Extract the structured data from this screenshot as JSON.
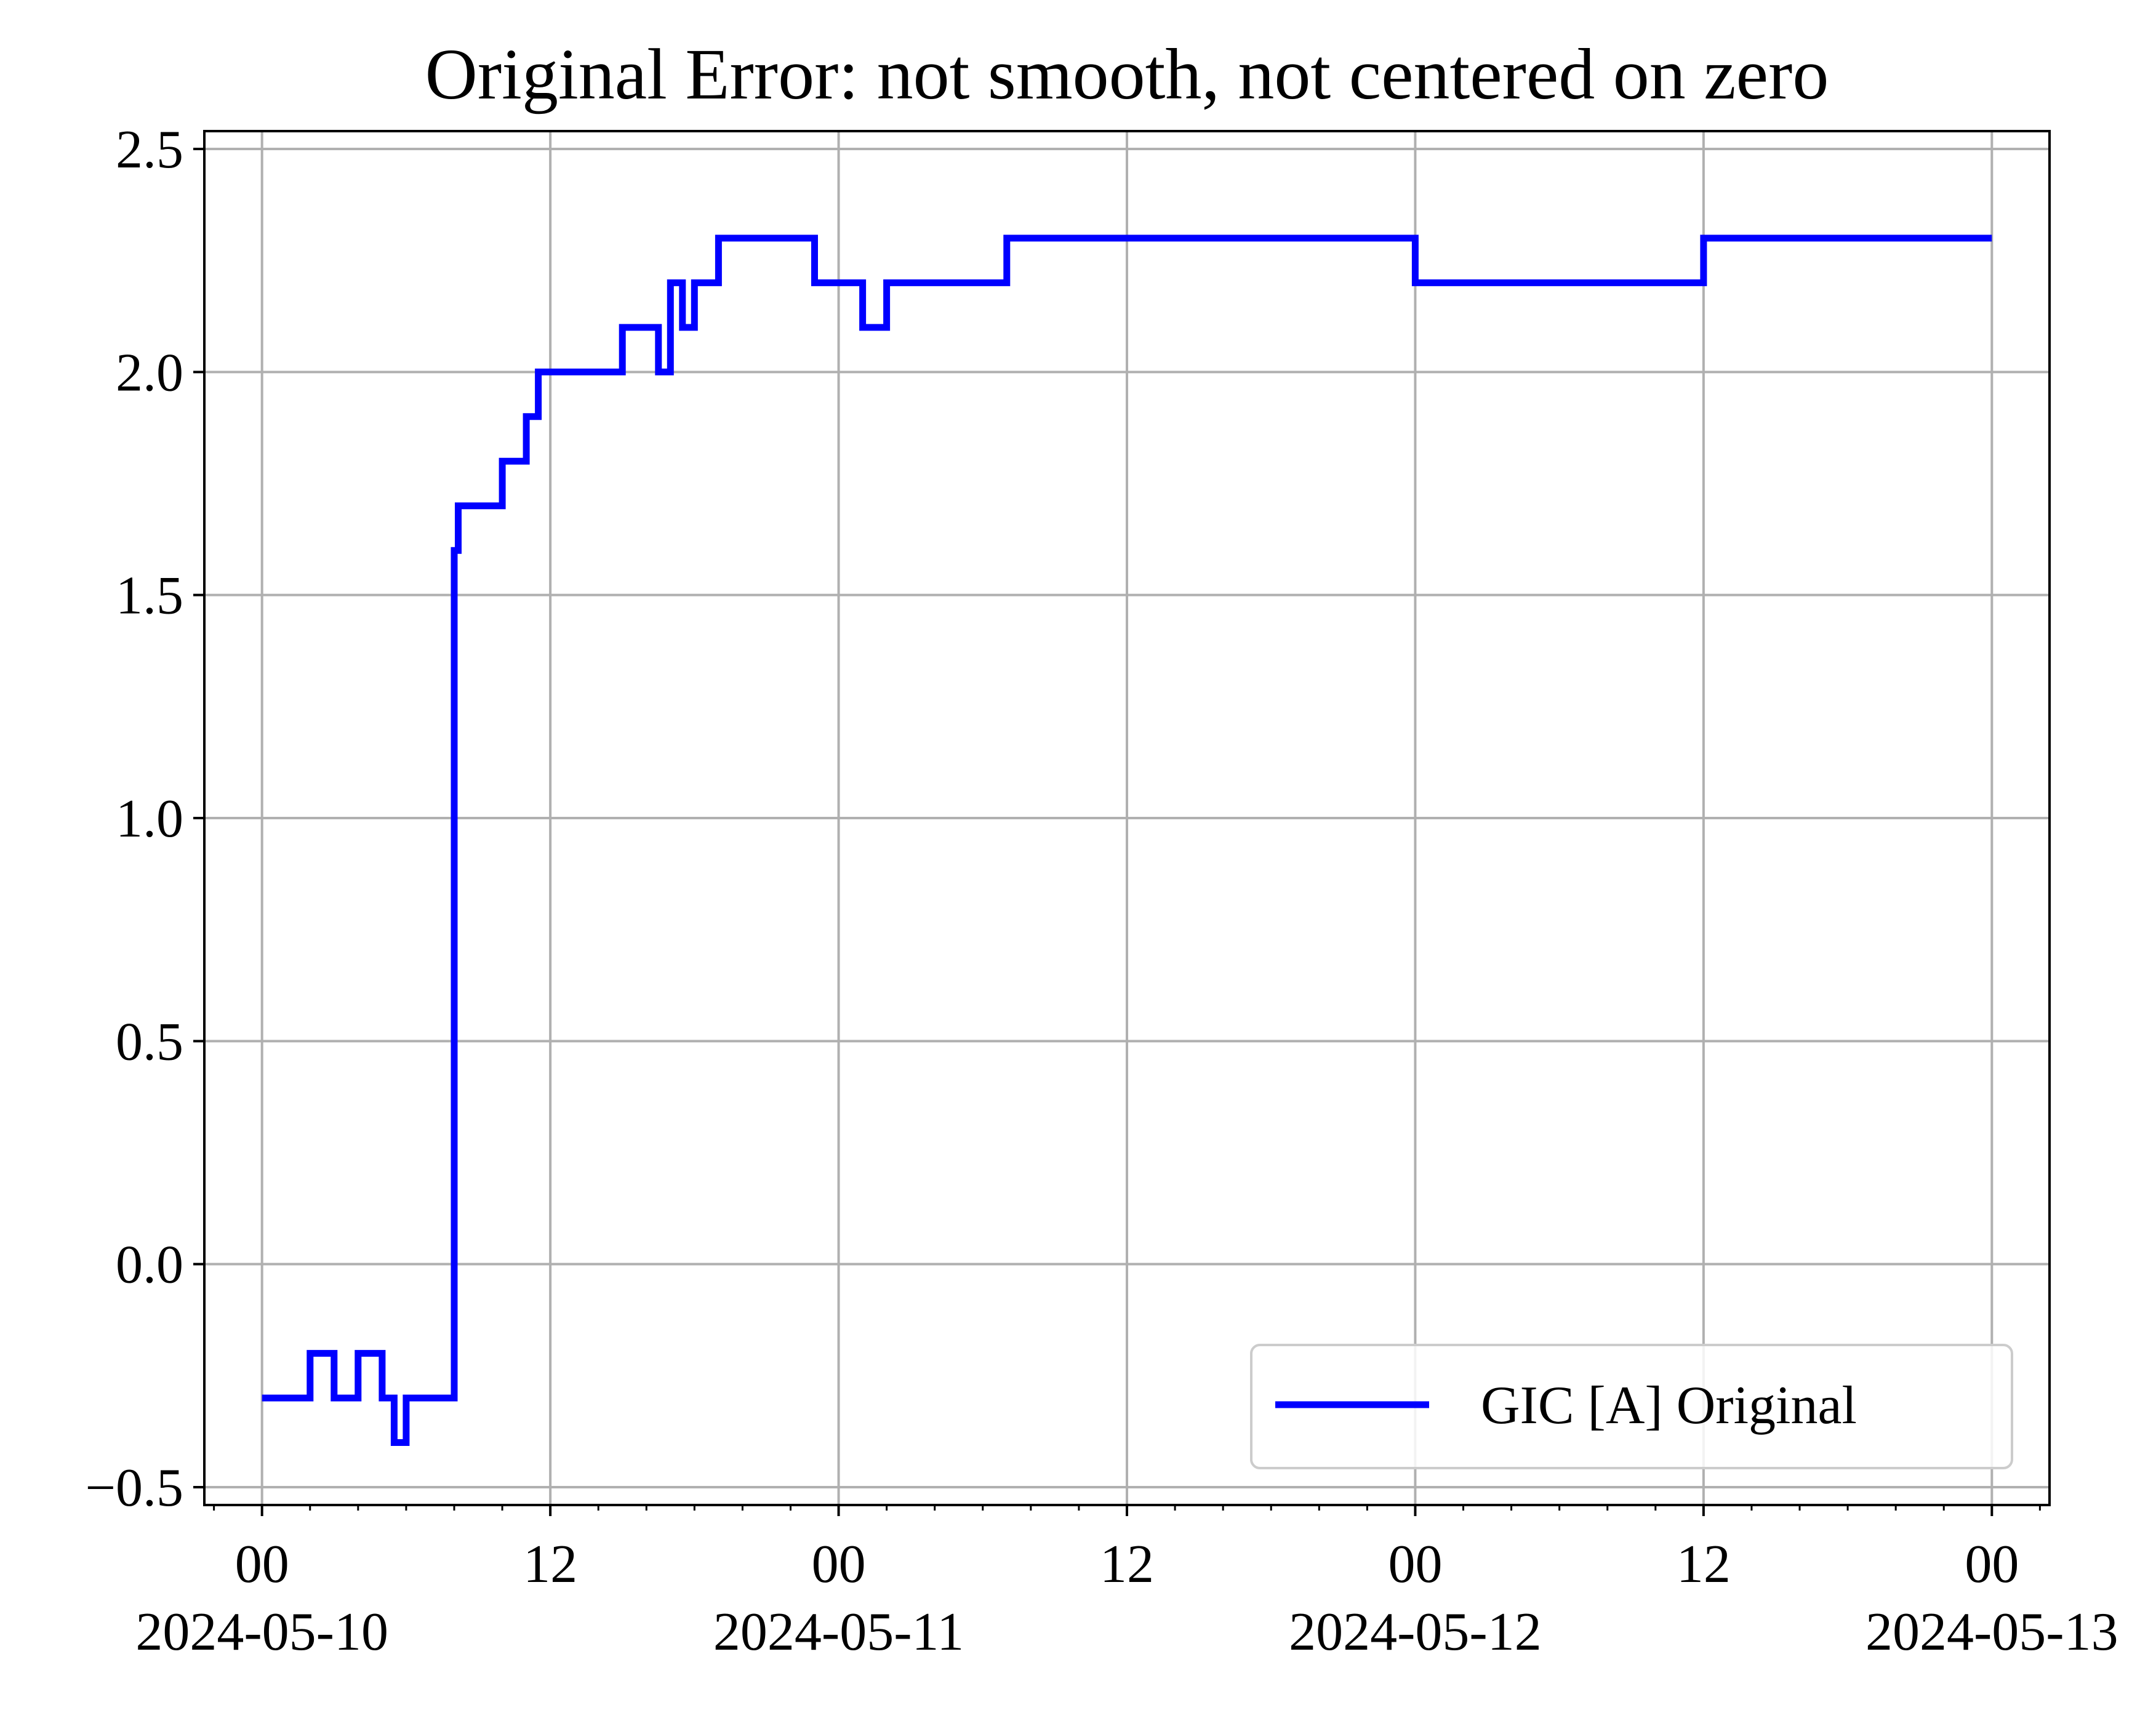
{
  "chart_data": {
    "type": "line",
    "title": "Original Error: not smooth, not centered on zero",
    "xlabel": "",
    "ylabel": "",
    "grid": true,
    "legend_position": "lower-right",
    "xlim": [
      "2024-05-09T21:36",
      "2024-05-13T02:24"
    ],
    "ylim": [
      -0.54,
      2.54
    ],
    "x_ticks": [
      {
        "at": "2024-05-10T00:00",
        "hour": "00",
        "date": "2024-05-10"
      },
      {
        "at": "2024-05-10T12:00",
        "hour": "12",
        "date": ""
      },
      {
        "at": "2024-05-11T00:00",
        "hour": "00",
        "date": "2024-05-11"
      },
      {
        "at": "2024-05-11T12:00",
        "hour": "12",
        "date": ""
      },
      {
        "at": "2024-05-12T00:00",
        "hour": "00",
        "date": "2024-05-12"
      },
      {
        "at": "2024-05-12T12:00",
        "hour": "12",
        "date": ""
      },
      {
        "at": "2024-05-13T00:00",
        "hour": "00",
        "date": "2024-05-13"
      }
    ],
    "y_ticks": [
      {
        "value": -0.5,
        "label": "−0.5"
      },
      {
        "value": 0.0,
        "label": "0.0"
      },
      {
        "value": 0.5,
        "label": "0.5"
      },
      {
        "value": 1.0,
        "label": "1.0"
      },
      {
        "value": 1.5,
        "label": "1.5"
      },
      {
        "value": 2.0,
        "label": "2.0"
      },
      {
        "value": 2.5,
        "label": "2.5"
      }
    ],
    "series": [
      {
        "name": "GIC [A] Original",
        "color": "#0000ff",
        "x": [
          "2024-05-10T00:00",
          "2024-05-10T01:00",
          "2024-05-10T02:00",
          "2024-05-10T03:00",
          "2024-05-10T04:00",
          "2024-05-10T05:00",
          "2024-05-10T05:30",
          "2024-05-10T06:00",
          "2024-05-10T07:00",
          "2024-05-10T07:45",
          "2024-05-10T08:00",
          "2024-05-10T08:10",
          "2024-05-10T08:20",
          "2024-05-10T08:30",
          "2024-05-10T09:30",
          "2024-05-10T10:00",
          "2024-05-10T10:30",
          "2024-05-10T11:00",
          "2024-05-10T11:30",
          "2024-05-10T12:00",
          "2024-05-10T13:00",
          "2024-05-10T14:00",
          "2024-05-10T15:00",
          "2024-05-10T16:00",
          "2024-05-10T16:30",
          "2024-05-10T17:00",
          "2024-05-10T17:30",
          "2024-05-10T18:00",
          "2024-05-10T19:00",
          "2024-05-10T20:00",
          "2024-05-10T21:00",
          "2024-05-10T22:00",
          "2024-05-10T23:00",
          "2024-05-11T00:00",
          "2024-05-11T01:00",
          "2024-05-11T02:00",
          "2024-05-11T03:00",
          "2024-05-11T04:00",
          "2024-05-11T05:00",
          "2024-05-11T06:00",
          "2024-05-11T07:00",
          "2024-05-11T08:00",
          "2024-05-11T09:00",
          "2024-05-11T10:00",
          "2024-05-11T11:00",
          "2024-05-11T12:00",
          "2024-05-11T14:00",
          "2024-05-11T16:00",
          "2024-05-11T18:00",
          "2024-05-11T20:00",
          "2024-05-11T22:00",
          "2024-05-12T00:00",
          "2024-05-12T02:00",
          "2024-05-12T04:00",
          "2024-05-12T05:00",
          "2024-05-12T06:00",
          "2024-05-12T08:00",
          "2024-05-12T10:00",
          "2024-05-12T12:00",
          "2024-05-12T14:00",
          "2024-05-12T16:00",
          "2024-05-12T18:00",
          "2024-05-12T20:00",
          "2024-05-12T22:00",
          "2024-05-12T23:00",
          "2024-05-13T00:00"
        ],
        "y": [
          -0.3,
          -0.3,
          -0.2,
          -0.3,
          -0.2,
          -0.3,
          -0.4,
          -0.3,
          -0.3,
          -0.3,
          1.6,
          1.7,
          1.7,
          1.7,
          1.7,
          1.8,
          1.8,
          1.9,
          2.0,
          2.0,
          2.0,
          2.0,
          2.1,
          2.1,
          2.0,
          2.2,
          2.1,
          2.2,
          2.3,
          2.3,
          2.3,
          2.3,
          2.2,
          2.2,
          2.1,
          2.2,
          2.2,
          2.2,
          2.2,
          2.2,
          2.3,
          2.3,
          2.3,
          2.3,
          2.3,
          2.3,
          2.3,
          2.3,
          2.3,
          2.3,
          2.3,
          2.2,
          2.2,
          2.2,
          2.2,
          2.2,
          2.2,
          2.2,
          2.3,
          2.3,
          2.3,
          2.3,
          2.3,
          2.3,
          2.3,
          2.3
        ]
      }
    ]
  }
}
